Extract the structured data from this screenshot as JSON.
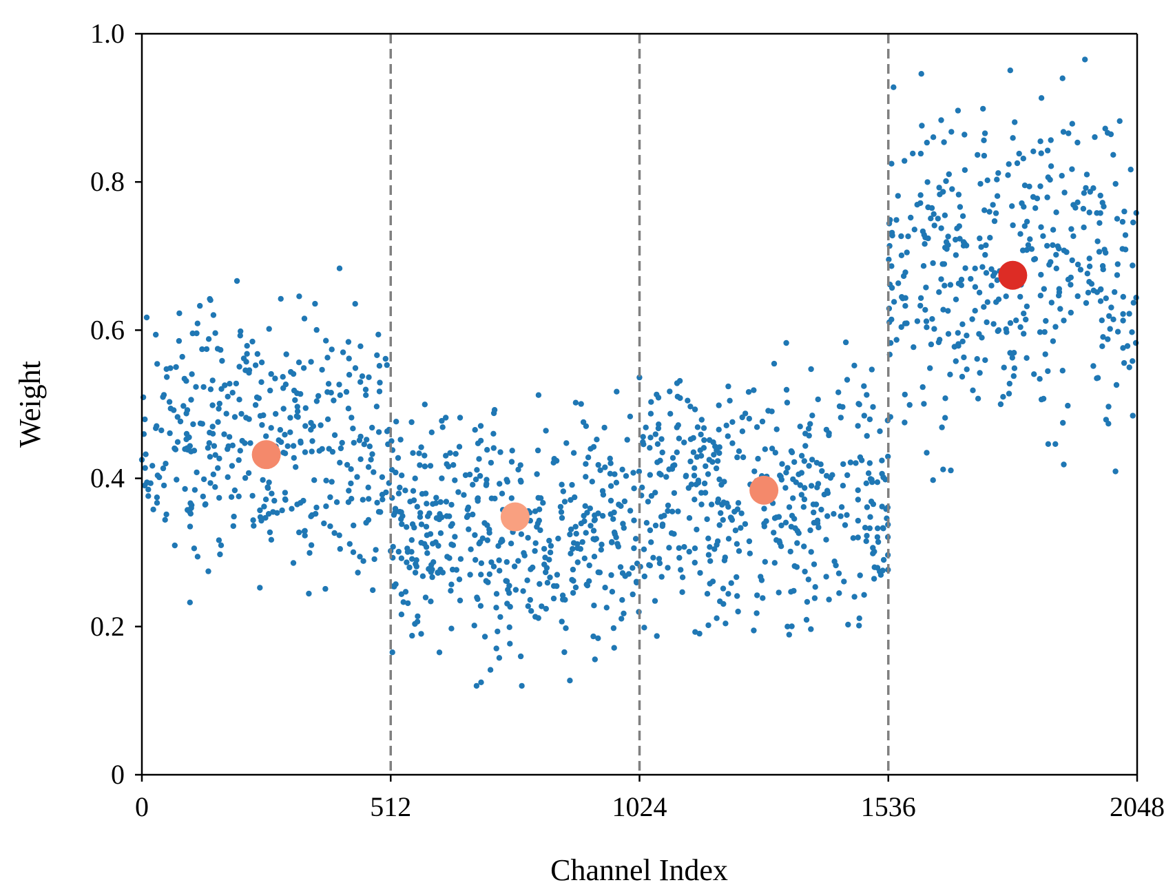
{
  "chart_data": {
    "type": "scatter",
    "title": "",
    "xlabel": "Channel Index",
    "ylabel": "Weight",
    "xlim": [
      0,
      2048
    ],
    "ylim": [
      0,
      1.0
    ],
    "x_ticks": [
      0,
      512,
      1024,
      1536,
      2048
    ],
    "x_tick_labels": [
      "0",
      "512",
      "1024",
      "1536",
      "2048"
    ],
    "y_ticks": [
      0,
      0.2,
      0.4,
      0.6,
      0.8,
      1.0
    ],
    "y_tick_labels": [
      "0",
      "0.2",
      "0.4",
      "0.6",
      "0.8",
      "1.0"
    ],
    "grid": false,
    "group_dividers": [
      512,
      1024,
      1536
    ],
    "point_color": "#1f77b4",
    "divider_color": "#808080",
    "groups": [
      {
        "x_range": [
          0,
          512
        ],
        "center": 0.45,
        "spread": 0.17,
        "n": 380
      },
      {
        "x_range": [
          512,
          1024
        ],
        "center": 0.33,
        "spread": 0.15,
        "n": 440
      },
      {
        "x_range": [
          1024,
          1536
        ],
        "center": 0.37,
        "spread": 0.16,
        "n": 420
      },
      {
        "x_range": [
          1536,
          2048
        ],
        "center": 0.68,
        "spread": 0.2,
        "n": 400
      }
    ],
    "group_means": [
      {
        "x": 256,
        "y": 0.432,
        "color": "#f4896b"
      },
      {
        "x": 768,
        "y": 0.348,
        "color": "#f9a080"
      },
      {
        "x": 1280,
        "y": 0.384,
        "color": "#f4896b"
      },
      {
        "x": 1792,
        "y": 0.674,
        "color": "#dd2c25"
      }
    ]
  }
}
